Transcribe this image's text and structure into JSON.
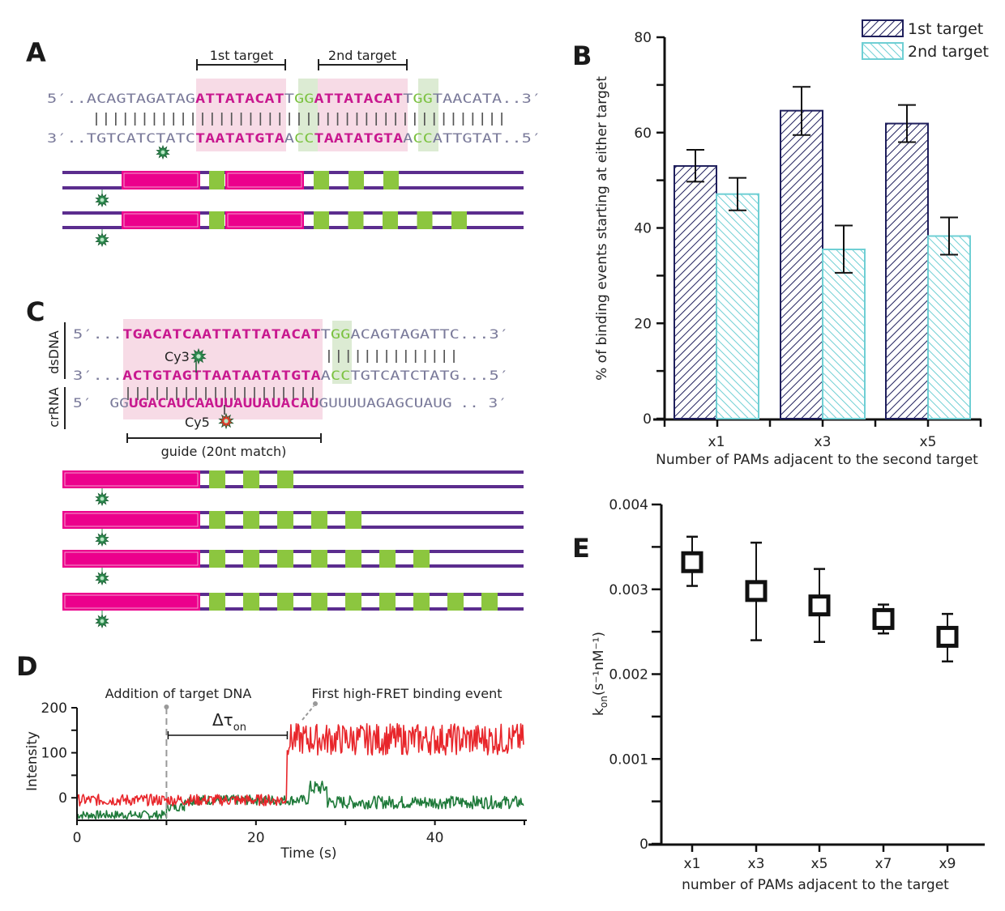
{
  "colors": {
    "pink_block": "#ec008c",
    "pink_highlight": "#f7dbe6",
    "green_block": "#8cc63f",
    "green_highlight": "#dcebd3",
    "dna_line": "#5b2d8e",
    "navy": "#1f1f5c",
    "cyan": "#6fcfd4",
    "red_trace": "#e8262b",
    "green_trace": "#1f7a3a",
    "cy3_star": "#2e8b4f",
    "cy5_star": "#e23b2a"
  },
  "panelA": {
    "letter": "A",
    "target1_label": "1st target",
    "target2_label": "2nd target",
    "top_strand": {
      "prefix": "5′..",
      "flank_left": "ACAGTAGATAG",
      "target1": "ATTATACAT",
      "spacer1": "T",
      "pam1": "GG",
      "target2": "ATTATACAT",
      "spacer2": "T",
      "pam2": "GG",
      "flank_right": "TAACATA",
      "suffix": "..3′"
    },
    "pairing": "|||||||||||||||||||||||||||||||||||||||||||",
    "bottom_strand": {
      "prefix": "3′..",
      "flank_left": "TGTCATCTATC",
      "target1": "TAATATGTA",
      "spacer1": "A",
      "pam1": "CC",
      "target2": "TAATATGTA",
      "spacer2": "A",
      "pam2": "CC",
      "flank_right": "ATTGTAT",
      "suffix": "..5′"
    },
    "constructs": [
      {
        "pam_count_after_target2": 3
      },
      {
        "pam_count_after_target2": 5
      }
    ]
  },
  "panelB": {
    "letter": "B"
  },
  "panelC": {
    "letter": "C",
    "dsdna_label": "dsDNA",
    "crrna_label": "crRNA",
    "top_strand": {
      "prefix": "5′...",
      "target": "TGACATCAATTATTATACAT",
      "spacer": "T",
      "pam": "GG",
      "flank": "ACAGTAGATTC",
      "suffix": "...3′"
    },
    "mid_pairs": "||||||||||||||",
    "bottom_strand": {
      "prefix": "3′...",
      "target": "ACTGTAGTTAATAATATGTA",
      "spacer": "A",
      "pam": "CC",
      "flank": "TGTCATCTATG",
      "suffix": "...5′"
    },
    "rna_pairs": "||||||||||||||||||||",
    "crrna": {
      "prefix": "5′",
      "lead": "GG",
      "guide": "UGACAUCAAUUAUUAUACAU",
      "tail": "GUUUUAGAGCUAUG",
      "suffix": ".. 3′"
    },
    "cy3_label": "Cy3",
    "cy5_label": "Cy5",
    "guide_label": "guide (20nt match)",
    "constructs": [
      {
        "pam_count": 3
      },
      {
        "pam_count": 5
      },
      {
        "pam_count": 7
      },
      {
        "pam_count": 9
      }
    ]
  },
  "panelD": {
    "letter": "D",
    "annotation_addition": "Addition of target DNA",
    "annotation_binding": "First high-FRET binding event",
    "delta_label": "Δτ",
    "delta_sub": "on"
  },
  "panelE": {
    "letter": "E"
  },
  "chart_data": [
    {
      "id": "B",
      "type": "bar",
      "title": "",
      "xlabel": "Number of PAMs adjacent to the second target",
      "ylabel": "% of binding events starting at either target",
      "categories": [
        "x1",
        "x3",
        "x5"
      ],
      "ylim": [
        0,
        80
      ],
      "yticks": [
        0,
        20,
        40,
        60,
        80
      ],
      "legend_position": "top-right",
      "series": [
        {
          "name": "1st target",
          "values": [
            53.0,
            64.6,
            61.9
          ],
          "err_low": [
            49.7,
            59.5,
            58.0
          ],
          "err_high": [
            56.4,
            69.6,
            65.8
          ],
          "pattern": "hatch-forward",
          "color": "#1f1f5c"
        },
        {
          "name": "2nd target",
          "values": [
            47.1,
            35.5,
            38.3
          ],
          "err_low": [
            43.7,
            30.6,
            34.4
          ],
          "err_high": [
            50.5,
            40.5,
            42.2
          ],
          "pattern": "hatch-backward",
          "color": "#6fcfd4"
        }
      ],
      "grid": false
    },
    {
      "id": "D",
      "type": "line",
      "title": "",
      "xlabel": "Time (s)",
      "ylabel": "Intensity",
      "xlim": [
        0,
        50
      ],
      "ylim": [
        -50,
        200
      ],
      "xticks": [
        0,
        20,
        40
      ],
      "yticks": [
        0,
        100,
        200
      ],
      "events": {
        "addition_time_s": 10,
        "binding_time_s": 23.5
      },
      "series": [
        {
          "name": "acceptor (red)",
          "color": "#e8262b",
          "segments": [
            {
              "t_start": 0,
              "t_end": 23.5,
              "mean": -5,
              "noise": 8
            },
            {
              "t_start": 23.5,
              "t_end": 50,
              "mean": 130,
              "noise": 22
            }
          ]
        },
        {
          "name": "donor (green)",
          "color": "#1f7a3a",
          "segments": [
            {
              "t_start": 0,
              "t_end": 10,
              "mean": -38,
              "noise": 6
            },
            {
              "t_start": 10,
              "t_end": 12,
              "mean": -20,
              "noise": 6
            },
            {
              "t_start": 12,
              "t_end": 26,
              "mean": -5,
              "noise": 7
            },
            {
              "t_start": 26,
              "t_end": 28,
              "mean": 22,
              "noise": 10
            },
            {
              "t_start": 28,
              "t_end": 50,
              "mean": -10,
              "noise": 9
            }
          ]
        }
      ],
      "grid": false
    },
    {
      "id": "E",
      "type": "scatter",
      "title": "",
      "xlabel": "number of PAMs adjacent to the target",
      "ylabel": "k_on (s⁻¹nM⁻¹)",
      "ylabel_main": "k",
      "ylabel_sub": "on",
      "ylabel_units": "(s⁻¹nM⁻¹)",
      "categories": [
        "x1",
        "x3",
        "x5",
        "x7",
        "x9"
      ],
      "values": [
        0.00332,
        0.00298,
        0.00281,
        0.00265,
        0.00244
      ],
      "err_low": [
        0.00304,
        0.0024,
        0.00238,
        0.00248,
        0.00215
      ],
      "err_high": [
        0.00362,
        0.00355,
        0.00324,
        0.00282,
        0.00271
      ],
      "ylim": [
        0,
        0.004
      ],
      "yticks": [
        0,
        0.001,
        0.002,
        0.003,
        0.004
      ],
      "ytick_labels": [
        "0",
        "0.001",
        "0.002",
        "0.003",
        "0.004"
      ],
      "marker": "open-square",
      "grid": false
    }
  ]
}
